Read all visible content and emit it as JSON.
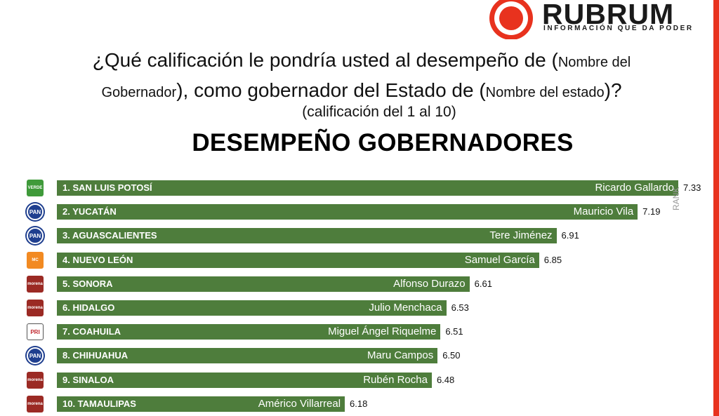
{
  "logo": {
    "wordmark": "RUBRUM",
    "tagline": "INFORMACIÓN QUE DA PODER",
    "color": "#e8321e"
  },
  "question": {
    "part1": "¿Qué calificación le pondría usted al desempeño de (",
    "part2": "Nombre del",
    "part3": "Gobernador",
    "part4": "), como gobernador del Estado de (",
    "part5": "Nombre del estado",
    "part6": ")?",
    "subtitle": "(calificación del 1 al 10)"
  },
  "watermark": "RANK",
  "chart_data": {
    "type": "bar",
    "orientation": "horizontal",
    "title": "DESEMPEÑO GOBERNADORES",
    "bar_color": "#4e7d3c",
    "rows": [
      {
        "rank_state": "1. SAN LUIS POTOSÍ",
        "governor": "Ricardo Gallardo",
        "value": 7.33,
        "value_label": "7.33",
        "party": "verde",
        "party_label": "VERDE"
      },
      {
        "rank_state": "2. YUCATÁN",
        "governor": "Mauricio Vila",
        "value": 7.19,
        "value_label": "7.19",
        "party": "pan",
        "party_label": "PAN"
      },
      {
        "rank_state": "3. AGUASCALIENTES",
        "governor": "Tere Jiménez",
        "value": 6.91,
        "value_label": "6.91",
        "party": "pan",
        "party_label": "PAN"
      },
      {
        "rank_state": "4. NUEVO LEÓN",
        "governor": "Samuel García",
        "value": 6.85,
        "value_label": "6.85",
        "party": "mc",
        "party_label": "MC"
      },
      {
        "rank_state": "5. SONORA",
        "governor": "Alfonso Durazo",
        "value": 6.61,
        "value_label": "6.61",
        "party": "morena",
        "party_label": "morena"
      },
      {
        "rank_state": "6. HIDALGO",
        "governor": "Julio Menchaca",
        "value": 6.53,
        "value_label": "6.53",
        "party": "morena",
        "party_label": "morena"
      },
      {
        "rank_state": "7. COAHUILA",
        "governor": "Miguel Ángel Riquelme",
        "value": 6.51,
        "value_label": "6.51",
        "party": "pri",
        "party_label": "PRI"
      },
      {
        "rank_state": "8. CHIHUAHUA",
        "governor": "Maru Campos",
        "value": 6.5,
        "value_label": "6.50",
        "party": "pan",
        "party_label": "PAN"
      },
      {
        "rank_state": "9. SINALOA",
        "governor": "Rubén Rocha",
        "value": 6.48,
        "value_label": "6.48",
        "party": "morena",
        "party_label": "morena"
      },
      {
        "rank_state": "10. TAMAULIPAS",
        "governor": "Américo Villarreal",
        "value": 6.18,
        "value_label": "6.18",
        "party": "morena",
        "party_label": "morena"
      }
    ]
  }
}
